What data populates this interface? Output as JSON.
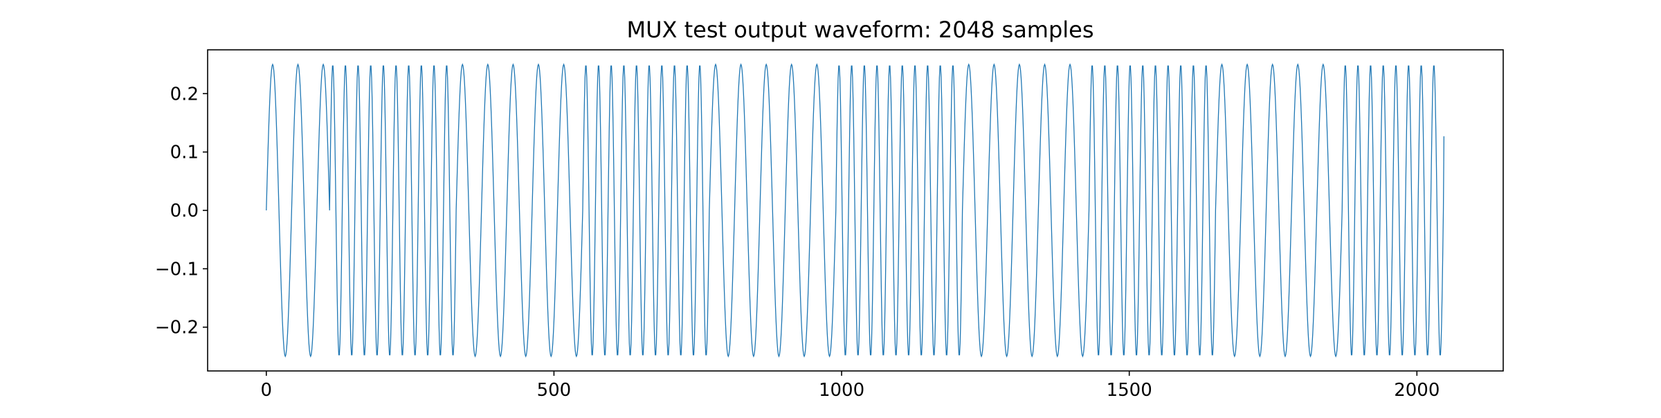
{
  "chart_data": {
    "type": "line",
    "title": "MUX test output waveform: 2048 samples",
    "xlabel": "",
    "ylabel": "",
    "xlim": [
      -102,
      2150
    ],
    "ylim": [
      -0.275,
      0.275
    ],
    "xticks": [
      0,
      500,
      1000,
      1500,
      2000
    ],
    "xtick_labels": [
      "0",
      "500",
      "1000",
      "1500",
      "2000"
    ],
    "yticks": [
      -0.2,
      -0.1,
      0.0,
      0.1,
      0.2
    ],
    "ytick_labels": [
      "−0.2",
      "−0.1",
      "0.0",
      "0.1",
      "0.2"
    ],
    "grid": false,
    "legend": "none",
    "series_color": "#1f77b4",
    "series": [
      {
        "n_samples": 2048,
        "amplitude": 0.25,
        "segments": [
          {
            "start": 0,
            "end": 110,
            "period": 44,
            "phase": 0
          },
          {
            "start": 110,
            "end": 330,
            "period": 22,
            "phase": 0
          },
          {
            "start": 330,
            "end": 550,
            "period": 44,
            "phase": 0
          },
          {
            "start": 550,
            "end": 770,
            "period": 22,
            "phase": 0
          },
          {
            "start": 770,
            "end": 990,
            "period": 44,
            "phase": 0
          },
          {
            "start": 990,
            "end": 1210,
            "period": 22,
            "phase": 0
          },
          {
            "start": 1210,
            "end": 1430,
            "period": 44,
            "phase": 0
          },
          {
            "start": 1430,
            "end": 1650,
            "period": 22,
            "phase": 0
          },
          {
            "start": 1650,
            "end": 1870,
            "period": 44,
            "phase": 0
          },
          {
            "start": 1870,
            "end": 2048,
            "period": 22,
            "phase": 0
          }
        ],
        "final_value": 0.127
      }
    ]
  }
}
